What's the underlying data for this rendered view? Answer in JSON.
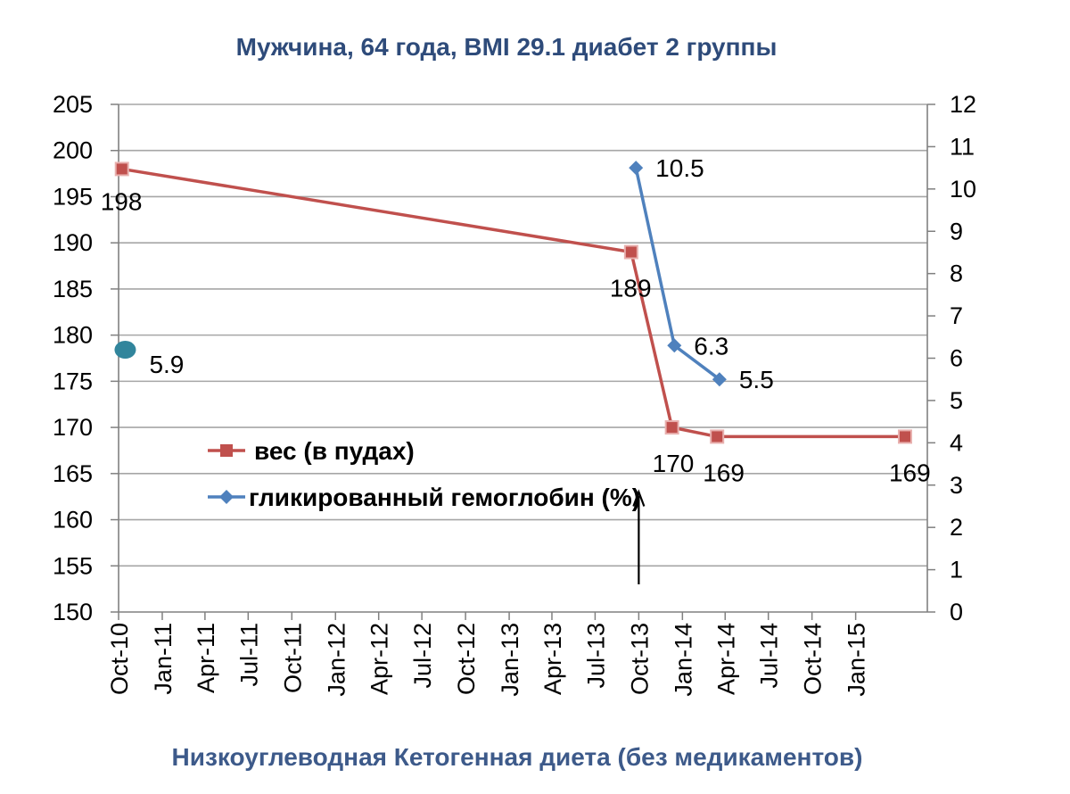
{
  "colors": {
    "weight": "#C0504D",
    "hba1c": "#4F81BD",
    "title": "#2E4B7A",
    "xtitle": "#3D5A8A",
    "grid": "#A6A6A6",
    "baseline_marker": "#31859C"
  },
  "chart_data": {
    "type": "line",
    "title": "Мужчина, 64 года, BMI 29.1 диабет 2 группы",
    "xlabel": "Низкоуглеводная Кетогенная диета (без медикаментов)",
    "x_tick_labels": [
      "Oct-10",
      "Jan-11",
      "Apr-11",
      "Jul-11",
      "Oct-11",
      "Jan-12",
      "Apr-12",
      "Jul-12",
      "Oct-12",
      "Jan-13",
      "Apr-13",
      "Jul-13",
      "Oct-13",
      "Jan-14",
      "Apr-14",
      "Jul-14",
      "Oct-14",
      "Jan-15"
    ],
    "y_left_ticks": [
      "205",
      "200",
      "195",
      "190",
      "185",
      "180",
      "175",
      "170",
      "165",
      "160",
      "155",
      "150"
    ],
    "y_right_ticks": [
      "12",
      "11",
      "10",
      "9",
      "8",
      "7",
      "6",
      "5",
      "4",
      "3",
      "2",
      "1",
      "0"
    ],
    "ylim_left": [
      150,
      205
    ],
    "ylim_right": [
      0,
      12
    ],
    "grid": true,
    "legend_position": "center-left",
    "series": [
      {
        "name": "вес (в пудах)",
        "axis": "left",
        "marker": "square",
        "x": [
          "2010-10-08",
          "2013-09-15",
          "2013-12-10",
          "2014-03-15",
          "2015-04-15"
        ],
        "y": [
          198,
          189,
          170,
          169,
          169
        ],
        "labels": [
          "198",
          "189",
          "170",
          "169",
          "169"
        ]
      },
      {
        "name": "гликированный гемоглобин (%)",
        "axis": "right",
        "marker": "diamond",
        "x": [
          "2013-09-25",
          "2013-12-15",
          "2014-03-20"
        ],
        "y": [
          10.5,
          6.3,
          5.5
        ],
        "labels": [
          "10.5",
          "6.3",
          "5.5"
        ]
      }
    ],
    "annotations": [
      {
        "type": "point",
        "x": "2010-10-15",
        "y_right": 6.2,
        "label": "5.9"
      },
      {
        "type": "arrow",
        "x": "2013-10-01",
        "y_left_from": 153,
        "y_left_to": 163
      }
    ]
  }
}
